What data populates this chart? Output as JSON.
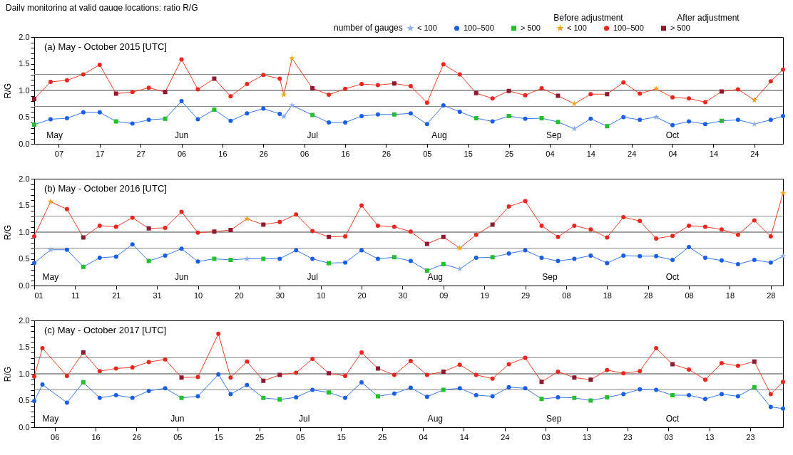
{
  "chart_data": [
    {
      "type": "line",
      "title": "Daily monitoring at valid gauge locations: ratio R/G",
      "subtitle": "(a) May - October 2015 [UTC]",
      "ylabel": "R/G",
      "legend_title": "number of gauges",
      "legend": "top right",
      "annotations": [
        "Before adjustment",
        "After adjustment"
      ],
      "x2lim": [
        "2015-05-01",
        "2015-10-31"
      ],
      "x2ticks": [
        {
          "value": "2015-05-06",
          "label": "May"
        },
        {
          "value": "2015-06-06",
          "label": "Jun"
        },
        {
          "value": "2015-07-08",
          "label": "Jul"
        },
        {
          "value": "2015-08-08",
          "label": "Aug"
        },
        {
          "value": "2015-09-05",
          "label": "Sep"
        },
        {
          "value": "2015-10-04",
          "label": "Oct"
        }
      ],
      "xlim": [
        "2015-05-01",
        "2015-10-31"
      ],
      "xticks": [
        {
          "value": "2015-05-07",
          "label": "07"
        },
        {
          "value": "2015-05-17",
          "label": "17"
        },
        {
          "value": "2015-05-27",
          "label": "27"
        },
        {
          "value": "2015-06-06",
          "label": "06"
        },
        {
          "value": "2015-06-16",
          "label": "16"
        },
        {
          "value": "2015-06-26",
          "label": "26"
        },
        {
          "value": "2015-07-06",
          "label": "06"
        },
        {
          "value": "2015-07-16",
          "label": "16"
        },
        {
          "value": "2015-07-26",
          "label": "26"
        },
        {
          "value": "2015-08-05",
          "label": "05"
        },
        {
          "value": "2015-08-15",
          "label": "15"
        },
        {
          "value": "2015-08-25",
          "label": "25"
        },
        {
          "value": "2015-09-04",
          "label": "04"
        },
        {
          "value": "2015-09-14",
          "label": "14"
        },
        {
          "value": "2015-09-24",
          "label": "24"
        },
        {
          "value": "2015-10-04",
          "label": "04"
        },
        {
          "value": "2015-10-14",
          "label": "14"
        },
        {
          "value": "2015-10-24",
          "label": "24"
        }
      ],
      "ylim": [
        0,
        2
      ],
      "yticks": [
        {
          "value": 0,
          "label": "0.0"
        },
        {
          "value": 0.1,
          "label": null
        },
        {
          "value": 0.2,
          "label": null
        },
        {
          "value": 0.3,
          "label": null
        },
        {
          "value": 0.4,
          "label": null
        },
        {
          "value": 0.5,
          "label": "0.5"
        },
        {
          "value": 0.6,
          "label": null
        },
        {
          "value": 0.7,
          "label": null
        },
        {
          "value": 0.8,
          "label": null
        },
        {
          "value": 0.9,
          "label": null
        },
        {
          "value": 1,
          "label": "1.0"
        },
        {
          "value": 1.1,
          "label": null
        },
        {
          "value": 1.2,
          "label": null
        },
        {
          "value": 1.3,
          "label": null
        },
        {
          "value": 1.4,
          "label": null
        },
        {
          "value": 1.5,
          "label": "1.5"
        },
        {
          "value": 1.6,
          "label": null
        },
        {
          "value": 1.7,
          "label": null
        },
        {
          "value": 1.8,
          "label": null
        },
        {
          "value": 1.9,
          "label": null
        },
        {
          "value": 2,
          "label": "2.0"
        }
      ],
      "ref_lines": [
        {
          "axis": "y",
          "value": 0.7,
          "color": "#8c8c8c"
        },
        {
          "axis": "y",
          "value": 1.0,
          "color": "#404040"
        },
        {
          "axis": "y",
          "value": 1.3,
          "color": "#8c8c8c"
        }
      ],
      "x": [
        "2015-05-01",
        "2015-05-05",
        "2015-05-09",
        "2015-05-13",
        "2015-05-17",
        "2015-05-21",
        "2015-05-25",
        "2015-05-29",
        "2015-06-02",
        "2015-06-06",
        "2015-06-10",
        "2015-06-14",
        "2015-06-18",
        "2015-06-22",
        "2015-06-26",
        "2015-06-30",
        "2015-07-01",
        "2015-07-03",
        "2015-07-08",
        "2015-07-12",
        "2015-07-16",
        "2015-07-20",
        "2015-07-24",
        "2015-07-28",
        "2015-08-01",
        "2015-08-05",
        "2015-08-09",
        "2015-08-13",
        "2015-08-17",
        "2015-08-21",
        "2015-08-25",
        "2015-08-29",
        "2015-09-02",
        "2015-09-06",
        "2015-09-10",
        "2015-09-14",
        "2015-09-18",
        "2015-09-22",
        "2015-09-26",
        "2015-09-30",
        "2015-10-04",
        "2015-10-08",
        "2015-10-12",
        "2015-10-16",
        "2015-10-20",
        "2015-10-24",
        "2015-10-28",
        "2015-10-31"
      ],
      "series": [
        {
          "type": "line",
          "color": "#3a78dd",
          "marker": "none",
          "values": [
            0.36,
            0.46,
            0.48,
            0.59,
            0.59,
            0.42,
            0.38,
            0.45,
            0.47,
            0.8,
            0.46,
            0.64,
            0.43,
            0.57,
            0.66,
            0.56,
            0.51,
            0.72,
            0.54,
            0.4,
            0.4,
            0.52,
            0.55,
            0.55,
            0.57,
            0.37,
            0.72,
            0.6,
            0.48,
            0.42,
            0.52,
            0.47,
            0.48,
            0.41,
            0.28,
            0.47,
            0.33,
            0.5,
            0.45,
            0.5,
            0.35,
            0.42,
            0.37,
            0.43,
            0.45,
            0.37,
            0.45,
            0.52
          ]
        },
        {
          "type": "line",
          "color": "#e8402a",
          "marker": "none",
          "values": [
            0.84,
            1.16,
            1.19,
            1.3,
            1.48,
            0.94,
            0.97,
            1.05,
            0.97,
            1.58,
            1.02,
            1.22,
            0.89,
            1.12,
            1.29,
            1.22,
            0.92,
            1.6,
            1.04,
            0.92,
            1.03,
            1.12,
            1.1,
            1.13,
            1.08,
            0.77,
            1.49,
            1.3,
            0.95,
            0.85,
            0.99,
            0.91,
            1.04,
            0.9,
            0.75,
            0.93,
            0.93,
            1.15,
            0.94,
            1.03,
            0.87,
            0.85,
            0.78,
            0.98,
            1.02,
            0.82,
            1.17,
            1.39
          ]
        },
        {
          "type": "scatter",
          "name": "< 100",
          "color": "#8fb0f0",
          "marker": "star",
          "x": [
            "2015-07-01",
            "2015-07-03",
            "2015-09-10",
            "2015-09-30",
            "2015-10-24"
          ],
          "values": [
            0.51,
            0.72,
            0.28,
            0.5,
            0.37
          ]
        },
        {
          "type": "scatter",
          "name": "100–500",
          "color": "#1a5ee6",
          "marker": "circle",
          "x": [
            "2015-05-05",
            "2015-05-09",
            "2015-05-13",
            "2015-05-17",
            "2015-05-25",
            "2015-05-29",
            "2015-06-06",
            "2015-06-10",
            "2015-06-18",
            "2015-06-22",
            "2015-06-26",
            "2015-06-30",
            "2015-07-12",
            "2015-07-16",
            "2015-07-20",
            "2015-07-24",
            "2015-08-01",
            "2015-08-05",
            "2015-08-09",
            "2015-08-13",
            "2015-08-21",
            "2015-08-29",
            "2015-09-14",
            "2015-09-22",
            "2015-09-26",
            "2015-10-04",
            "2015-10-08",
            "2015-10-12",
            "2015-10-20",
            "2015-10-28",
            "2015-10-31"
          ],
          "values": [
            0.46,
            0.48,
            0.59,
            0.59,
            0.38,
            0.45,
            0.8,
            0.46,
            0.43,
            0.57,
            0.66,
            0.56,
            0.4,
            0.4,
            0.52,
            0.55,
            0.57,
            0.37,
            0.72,
            0.6,
            0.42,
            0.47,
            0.47,
            0.5,
            0.45,
            0.35,
            0.42,
            0.37,
            0.45,
            0.45,
            0.52
          ]
        },
        {
          "type": "scatter",
          "name": "> 500",
          "color": "#21c02c",
          "marker": "square",
          "x": [
            "2015-05-01",
            "2015-05-21",
            "2015-06-02",
            "2015-06-14",
            "2015-07-08",
            "2015-07-28",
            "2015-08-17",
            "2015-08-25",
            "2015-09-02",
            "2015-09-06",
            "2015-09-18",
            "2015-10-16"
          ],
          "values": [
            0.36,
            0.42,
            0.47,
            0.64,
            0.54,
            0.55,
            0.48,
            0.52,
            0.48,
            0.41,
            0.33,
            0.43
          ]
        },
        {
          "type": "scatter",
          "name": "< 100",
          "color": "#f5a41c",
          "marker": "star",
          "x": [
            "2015-07-01",
            "2015-07-03",
            "2015-09-10",
            "2015-09-30",
            "2015-10-24"
          ],
          "values": [
            0.92,
            1.6,
            0.75,
            1.03,
            0.82
          ]
        },
        {
          "type": "scatter",
          "name": "100–500",
          "color": "#e8251e",
          "marker": "circle",
          "x": [
            "2015-05-05",
            "2015-05-09",
            "2015-05-13",
            "2015-05-17",
            "2015-05-25",
            "2015-05-29",
            "2015-06-06",
            "2015-06-10",
            "2015-06-18",
            "2015-06-22",
            "2015-06-26",
            "2015-06-30",
            "2015-07-12",
            "2015-07-16",
            "2015-07-20",
            "2015-07-24",
            "2015-08-01",
            "2015-08-05",
            "2015-08-09",
            "2015-08-13",
            "2015-08-21",
            "2015-08-29",
            "2015-09-02",
            "2015-09-14",
            "2015-09-22",
            "2015-09-26",
            "2015-10-04",
            "2015-10-08",
            "2015-10-12",
            "2015-10-20",
            "2015-10-28",
            "2015-10-31"
          ],
          "values": [
            1.16,
            1.19,
            1.3,
            1.48,
            0.97,
            1.05,
            1.58,
            1.02,
            0.89,
            1.12,
            1.29,
            1.22,
            0.92,
            1.03,
            1.12,
            1.1,
            1.08,
            0.77,
            1.49,
            1.3,
            0.85,
            0.91,
            1.04,
            0.93,
            1.15,
            0.94,
            0.87,
            0.85,
            0.78,
            1.02,
            1.17,
            1.39
          ]
        },
        {
          "type": "scatter",
          "name": "> 500",
          "color": "#8c1a30",
          "marker": "square",
          "x": [
            "2015-05-01",
            "2015-05-21",
            "2015-06-02",
            "2015-06-14",
            "2015-07-08",
            "2015-07-28",
            "2015-08-17",
            "2015-08-25",
            "2015-09-06",
            "2015-09-18",
            "2015-10-16"
          ],
          "values": [
            0.84,
            0.94,
            0.97,
            1.22,
            1.04,
            1.13,
            0.95,
            0.99,
            0.9,
            0.93,
            0.98
          ]
        }
      ]
    },
    {
      "type": "line",
      "title": "(b) May - October 2016 [UTC]",
      "ylabel": "R/G",
      "x2lim": [
        "2016-05-01",
        "2016-10-31"
      ],
      "x2ticks": [
        {
          "value": "2016-05-05",
          "label": "May"
        },
        {
          "value": "2016-06-06",
          "label": "Jun"
        },
        {
          "value": "2016-07-08",
          "label": "Jul"
        },
        {
          "value": "2016-08-07",
          "label": "Aug"
        },
        {
          "value": "2016-09-04",
          "label": "Sep"
        },
        {
          "value": "2016-10-04",
          "label": "Oct"
        }
      ],
      "xlim": [
        "2016-05-01",
        "2016-10-31"
      ],
      "xticks": [
        {
          "value": "2016-05-01",
          "label": "01"
        },
        {
          "value": "2016-05-11",
          "label": "11"
        },
        {
          "value": "2016-05-21",
          "label": "21"
        },
        {
          "value": "2016-05-31",
          "label": "31"
        },
        {
          "value": "2016-06-10",
          "label": "10"
        },
        {
          "value": "2016-06-20",
          "label": "20"
        },
        {
          "value": "2016-06-30",
          "label": "30"
        },
        {
          "value": "2016-07-10",
          "label": "10"
        },
        {
          "value": "2016-07-20",
          "label": "20"
        },
        {
          "value": "2016-07-30",
          "label": "30"
        },
        {
          "value": "2016-08-09",
          "label": "09"
        },
        {
          "value": "2016-08-19",
          "label": "19"
        },
        {
          "value": "2016-08-29",
          "label": "29"
        },
        {
          "value": "2016-09-08",
          "label": "08"
        },
        {
          "value": "2016-09-18",
          "label": "18"
        },
        {
          "value": "2016-09-28",
          "label": "28"
        },
        {
          "value": "2016-10-08",
          "label": "08"
        },
        {
          "value": "2016-10-18",
          "label": "18"
        },
        {
          "value": "2016-10-28",
          "label": "28"
        }
      ],
      "ylim": [
        0,
        2
      ],
      "yticks": [
        {
          "value": 0,
          "label": "0.0"
        },
        {
          "value": 0.1,
          "label": null
        },
        {
          "value": 0.2,
          "label": null
        },
        {
          "value": 0.3,
          "label": null
        },
        {
          "value": 0.4,
          "label": null
        },
        {
          "value": 0.5,
          "label": "0.5"
        },
        {
          "value": 0.6,
          "label": null
        },
        {
          "value": 0.7,
          "label": null
        },
        {
          "value": 0.8,
          "label": null
        },
        {
          "value": 0.9,
          "label": null
        },
        {
          "value": 1,
          "label": "1.0"
        },
        {
          "value": 1.1,
          "label": null
        },
        {
          "value": 1.2,
          "label": null
        },
        {
          "value": 1.3,
          "label": null
        },
        {
          "value": 1.4,
          "label": null
        },
        {
          "value": 1.5,
          "label": "1.5"
        },
        {
          "value": 1.6,
          "label": null
        },
        {
          "value": 1.7,
          "label": null
        },
        {
          "value": 1.8,
          "label": null
        },
        {
          "value": 1.9,
          "label": null
        },
        {
          "value": 2,
          "label": "2.0"
        }
      ],
      "ref_lines": [
        {
          "axis": "y",
          "value": 0.7,
          "color": "#8c8c8c"
        },
        {
          "axis": "y",
          "value": 1.0,
          "color": "#404040"
        },
        {
          "axis": "y",
          "value": 1.3,
          "color": "#8c8c8c"
        }
      ],
      "x": [
        "2016-05-01",
        "2016-05-05",
        "2016-05-09",
        "2016-05-13",
        "2016-05-17",
        "2016-05-21",
        "2016-05-25",
        "2016-05-29",
        "2016-06-02",
        "2016-06-06",
        "2016-06-10",
        "2016-06-14",
        "2016-06-18",
        "2016-06-22",
        "2016-06-26",
        "2016-06-30",
        "2016-07-04",
        "2016-07-08",
        "2016-07-12",
        "2016-07-16",
        "2016-07-20",
        "2016-07-24",
        "2016-07-28",
        "2016-08-01",
        "2016-08-05",
        "2016-08-09",
        "2016-08-13",
        "2016-08-17",
        "2016-08-21",
        "2016-08-25",
        "2016-08-29",
        "2016-09-02",
        "2016-09-06",
        "2016-09-10",
        "2016-09-14",
        "2016-09-18",
        "2016-09-22",
        "2016-09-26",
        "2016-09-30",
        "2016-10-04",
        "2016-10-08",
        "2016-10-12",
        "2016-10-16",
        "2016-10-20",
        "2016-10-24",
        "2016-10-28",
        "2016-10-31"
      ],
      "series": [
        {
          "type": "line",
          "color": "#3a78dd",
          "marker": "none",
          "values": [
            0.42,
            0.67,
            0.67,
            0.35,
            0.52,
            0.54,
            0.77,
            0.46,
            0.56,
            0.69,
            0.45,
            0.5,
            0.48,
            0.5,
            0.5,
            0.5,
            0.66,
            0.5,
            0.42,
            0.43,
            0.66,
            0.5,
            0.53,
            0.46,
            0.28,
            0.4,
            0.31,
            0.52,
            0.53,
            0.6,
            0.66,
            0.52,
            0.46,
            0.5,
            0.56,
            0.42,
            0.56,
            0.55,
            0.55,
            0.48,
            0.72,
            0.52,
            0.47,
            0.4,
            0.48,
            0.43,
            0.55
          ]
        },
        {
          "type": "line",
          "color": "#e8402a",
          "marker": "none",
          "values": [
            0.92,
            1.57,
            1.43,
            0.9,
            1.12,
            1.1,
            1.27,
            1.07,
            1.08,
            1.38,
            0.99,
            1.01,
            1.04,
            1.25,
            1.14,
            1.19,
            1.33,
            1.02,
            0.91,
            0.92,
            1.5,
            1.12,
            1.1,
            1.01,
            0.78,
            0.91,
            0.7,
            0.95,
            1.14,
            1.48,
            1.58,
            1.12,
            0.91,
            1.12,
            1.05,
            0.9,
            1.28,
            1.21,
            0.88,
            0.93,
            1.12,
            1.1,
            1.05,
            0.95,
            1.22,
            0.92,
            1.73
          ]
        },
        {
          "type": "scatter",
          "color": "#8fb0f0",
          "marker": "star",
          "x": [
            "2016-05-05",
            "2016-06-22",
            "2016-08-13",
            "2016-10-31"
          ],
          "values": [
            0.67,
            0.5,
            0.31,
            0.55
          ]
        },
        {
          "type": "scatter",
          "color": "#1a5ee6",
          "marker": "circle",
          "x": [
            "2016-05-01",
            "2016-05-09",
            "2016-05-17",
            "2016-05-21",
            "2016-05-25",
            "2016-06-02",
            "2016-06-06",
            "2016-06-10",
            "2016-06-30",
            "2016-07-04",
            "2016-07-08",
            "2016-07-16",
            "2016-07-20",
            "2016-07-24",
            "2016-08-01",
            "2016-08-17",
            "2016-08-25",
            "2016-08-29",
            "2016-09-02",
            "2016-09-06",
            "2016-09-10",
            "2016-09-14",
            "2016-09-18",
            "2016-09-22",
            "2016-09-26",
            "2016-09-30",
            "2016-10-04",
            "2016-10-08",
            "2016-10-12",
            "2016-10-16",
            "2016-10-20",
            "2016-10-24",
            "2016-10-28"
          ],
          "values": [
            0.42,
            0.67,
            0.52,
            0.54,
            0.77,
            0.56,
            0.69,
            0.45,
            0.5,
            0.66,
            0.5,
            0.43,
            0.66,
            0.5,
            0.46,
            0.52,
            0.6,
            0.66,
            0.52,
            0.46,
            0.5,
            0.56,
            0.42,
            0.56,
            0.55,
            0.55,
            0.48,
            0.72,
            0.52,
            0.47,
            0.4,
            0.48,
            0.43
          ]
        },
        {
          "type": "scatter",
          "color": "#21c02c",
          "marker": "square",
          "x": [
            "2016-05-13",
            "2016-05-29",
            "2016-06-14",
            "2016-06-18",
            "2016-06-26",
            "2016-07-12",
            "2016-07-28",
            "2016-08-05",
            "2016-08-09",
            "2016-08-21"
          ],
          "values": [
            0.35,
            0.46,
            0.5,
            0.48,
            0.5,
            0.42,
            0.53,
            0.28,
            0.4,
            0.53
          ]
        },
        {
          "type": "scatter",
          "color": "#f5a41c",
          "marker": "star",
          "x": [
            "2016-05-05",
            "2016-06-22",
            "2016-08-13",
            "2016-10-31"
          ],
          "values": [
            1.57,
            1.25,
            0.7,
            1.73
          ]
        },
        {
          "type": "scatter",
          "color": "#e8251e",
          "marker": "circle",
          "x": [
            "2016-05-01",
            "2016-05-09",
            "2016-05-17",
            "2016-05-21",
            "2016-05-25",
            "2016-06-02",
            "2016-06-06",
            "2016-06-10",
            "2016-06-30",
            "2016-07-04",
            "2016-07-08",
            "2016-07-16",
            "2016-07-20",
            "2016-07-24",
            "2016-07-28",
            "2016-08-01",
            "2016-08-17",
            "2016-08-25",
            "2016-08-29",
            "2016-09-02",
            "2016-09-06",
            "2016-09-10",
            "2016-09-14",
            "2016-09-18",
            "2016-09-22",
            "2016-09-26",
            "2016-09-30",
            "2016-10-04",
            "2016-10-08",
            "2016-10-12",
            "2016-10-16",
            "2016-10-20",
            "2016-10-24",
            "2016-10-28"
          ],
          "values": [
            0.92,
            1.43,
            1.12,
            1.1,
            1.27,
            1.08,
            1.38,
            0.99,
            1.19,
            1.33,
            1.02,
            0.92,
            1.5,
            1.12,
            1.1,
            1.01,
            0.95,
            1.48,
            1.58,
            1.12,
            0.91,
            1.12,
            1.05,
            0.9,
            1.28,
            1.21,
            0.88,
            0.93,
            1.12,
            1.1,
            1.05,
            0.95,
            1.22,
            0.92
          ]
        },
        {
          "type": "scatter",
          "color": "#8c1a30",
          "marker": "square",
          "x": [
            "2016-05-13",
            "2016-05-29",
            "2016-06-14",
            "2016-06-18",
            "2016-06-26",
            "2016-07-12",
            "2016-08-05",
            "2016-08-09",
            "2016-08-21"
          ],
          "values": [
            0.9,
            1.07,
            1.01,
            1.04,
            1.14,
            0.91,
            0.78,
            0.91,
            1.14
          ]
        }
      ]
    },
    {
      "type": "line",
      "title": "(c) May - October 2017 [UTC]",
      "ylabel": "R/G",
      "x2lim": [
        "2017-05-01",
        "2017-10-31"
      ],
      "x2ticks": [
        {
          "value": "2017-05-05",
          "label": "May"
        },
        {
          "value": "2017-06-05",
          "label": "Jun"
        },
        {
          "value": "2017-07-06",
          "label": "Jul"
        },
        {
          "value": "2017-08-07",
          "label": "Aug"
        },
        {
          "value": "2017-09-05",
          "label": "Sep"
        },
        {
          "value": "2017-10-04",
          "label": "Oct"
        }
      ],
      "xlim": [
        "2017-05-01",
        "2017-10-31"
      ],
      "xticks": [
        {
          "value": "2017-05-06",
          "label": "06"
        },
        {
          "value": "2017-05-16",
          "label": "16"
        },
        {
          "value": "2017-05-26",
          "label": "26"
        },
        {
          "value": "2017-06-05",
          "label": "05"
        },
        {
          "value": "2017-06-15",
          "label": "15"
        },
        {
          "value": "2017-06-25",
          "label": "25"
        },
        {
          "value": "2017-07-05",
          "label": "05"
        },
        {
          "value": "2017-07-15",
          "label": "15"
        },
        {
          "value": "2017-07-25",
          "label": "25"
        },
        {
          "value": "2017-08-04",
          "label": "04"
        },
        {
          "value": "2017-08-14",
          "label": "14"
        },
        {
          "value": "2017-08-24",
          "label": "24"
        },
        {
          "value": "2017-09-03",
          "label": "03"
        },
        {
          "value": "2017-09-13",
          "label": "13"
        },
        {
          "value": "2017-09-23",
          "label": "23"
        },
        {
          "value": "2017-10-03",
          "label": "03"
        },
        {
          "value": "2017-10-13",
          "label": "13"
        },
        {
          "value": "2017-10-23",
          "label": "23"
        }
      ],
      "ylim": [
        0,
        2
      ],
      "yticks": [
        {
          "value": 0,
          "label": "0.0"
        },
        {
          "value": 0.1,
          "label": null
        },
        {
          "value": 0.2,
          "label": null
        },
        {
          "value": 0.3,
          "label": null
        },
        {
          "value": 0.4,
          "label": null
        },
        {
          "value": 0.5,
          "label": "0.5"
        },
        {
          "value": 0.6,
          "label": null
        },
        {
          "value": 0.7,
          "label": null
        },
        {
          "value": 0.8,
          "label": null
        },
        {
          "value": 0.9,
          "label": null
        },
        {
          "value": 1,
          "label": "1.0"
        },
        {
          "value": 1.1,
          "label": null
        },
        {
          "value": 1.2,
          "label": null
        },
        {
          "value": 1.3,
          "label": null
        },
        {
          "value": 1.4,
          "label": null
        },
        {
          "value": 1.5,
          "label": "1.5"
        },
        {
          "value": 1.6,
          "label": null
        },
        {
          "value": 1.7,
          "label": null
        },
        {
          "value": 1.8,
          "label": null
        },
        {
          "value": 1.9,
          "label": null
        },
        {
          "value": 2,
          "label": "2.0"
        }
      ],
      "ref_lines": [
        {
          "axis": "y",
          "value": 0.7,
          "color": "#8c8c8c"
        },
        {
          "axis": "y",
          "value": 1.0,
          "color": "#404040"
        },
        {
          "axis": "y",
          "value": 1.3,
          "color": "#8c8c8c"
        }
      ],
      "x": [
        "2017-05-01",
        "2017-05-03",
        "2017-05-09",
        "2017-05-13",
        "2017-05-17",
        "2017-05-21",
        "2017-05-25",
        "2017-05-29",
        "2017-06-02",
        "2017-06-06",
        "2017-06-10",
        "2017-06-15",
        "2017-06-18",
        "2017-06-22",
        "2017-06-26",
        "2017-06-30",
        "2017-07-04",
        "2017-07-08",
        "2017-07-12",
        "2017-07-16",
        "2017-07-20",
        "2017-07-24",
        "2017-07-28",
        "2017-08-01",
        "2017-08-05",
        "2017-08-09",
        "2017-08-13",
        "2017-08-17",
        "2017-08-21",
        "2017-08-25",
        "2017-08-29",
        "2017-09-02",
        "2017-09-06",
        "2017-09-10",
        "2017-09-14",
        "2017-09-18",
        "2017-09-22",
        "2017-09-26",
        "2017-09-30",
        "2017-10-04",
        "2017-10-08",
        "2017-10-12",
        "2017-10-16",
        "2017-10-20",
        "2017-10-24",
        "2017-10-28",
        "2017-10-31"
      ],
      "series": [
        {
          "type": "line",
          "color": "#3a78dd",
          "marker": "none",
          "values": [
            0.49,
            0.8,
            0.46,
            0.84,
            0.55,
            0.6,
            0.55,
            0.68,
            0.73,
            0.55,
            0.58,
            0.99,
            0.62,
            0.79,
            0.55,
            0.52,
            0.56,
            0.7,
            0.65,
            0.55,
            0.84,
            0.58,
            0.63,
            0.74,
            0.57,
            0.7,
            0.73,
            0.6,
            0.58,
            0.75,
            0.73,
            0.53,
            0.56,
            0.55,
            0.5,
            0.56,
            0.62,
            0.71,
            0.7,
            0.6,
            0.6,
            0.53,
            0.62,
            0.58,
            0.75,
            0.38,
            0.35
          ]
        },
        {
          "type": "line",
          "color": "#e8402a",
          "marker": "none",
          "values": [
            0.95,
            1.48,
            0.96,
            1.4,
            1.05,
            1.1,
            1.12,
            1.22,
            1.27,
            0.93,
            0.94,
            1.75,
            0.93,
            1.23,
            0.87,
            0.98,
            1.02,
            1.28,
            1.01,
            0.96,
            1.4,
            1.1,
            0.98,
            1.24,
            0.98,
            1.04,
            1.17,
            0.98,
            0.91,
            1.18,
            1.3,
            0.85,
            1.04,
            0.93,
            0.89,
            1.07,
            1.01,
            1.05,
            1.48,
            1.18,
            1.08,
            0.89,
            1.2,
            1.15,
            1.23,
            0.62,
            0.85
          ]
        },
        {
          "type": "scatter",
          "color": "#1a5ee6",
          "marker": "circle",
          "x": [
            "2017-05-01",
            "2017-05-03",
            "2017-05-09",
            "2017-05-17",
            "2017-05-21",
            "2017-05-25",
            "2017-05-29",
            "2017-06-02",
            "2017-06-10",
            "2017-06-15",
            "2017-06-18",
            "2017-06-22",
            "2017-07-04",
            "2017-07-08",
            "2017-07-16",
            "2017-07-20",
            "2017-07-28",
            "2017-08-01",
            "2017-08-05",
            "2017-08-13",
            "2017-08-17",
            "2017-08-21",
            "2017-08-25",
            "2017-08-29",
            "2017-09-06",
            "2017-09-22",
            "2017-09-26",
            "2017-09-30",
            "2017-10-08",
            "2017-10-12",
            "2017-10-16",
            "2017-10-20",
            "2017-10-28",
            "2017-10-31"
          ],
          "values": [
            0.49,
            0.8,
            0.46,
            0.55,
            0.6,
            0.55,
            0.68,
            0.73,
            0.58,
            0.99,
            0.62,
            0.79,
            0.56,
            0.7,
            0.55,
            0.84,
            0.63,
            0.74,
            0.57,
            0.73,
            0.6,
            0.58,
            0.75,
            0.73,
            0.56,
            0.62,
            0.71,
            0.7,
            0.6,
            0.53,
            0.62,
            0.58,
            0.38,
            0.35
          ]
        },
        {
          "type": "scatter",
          "color": "#21c02c",
          "marker": "square",
          "x": [
            "2017-05-13",
            "2017-06-06",
            "2017-06-26",
            "2017-06-30",
            "2017-07-12",
            "2017-07-24",
            "2017-08-09",
            "2017-09-02",
            "2017-09-10",
            "2017-09-14",
            "2017-09-18",
            "2017-10-04",
            "2017-10-24"
          ],
          "values": [
            0.84,
            0.55,
            0.55,
            0.52,
            0.65,
            0.58,
            0.7,
            0.53,
            0.55,
            0.5,
            0.56,
            0.6,
            0.75
          ]
        },
        {
          "type": "scatter",
          "color": "#e8251e",
          "marker": "circle",
          "x": [
            "2017-05-01",
            "2017-05-03",
            "2017-05-09",
            "2017-05-17",
            "2017-05-21",
            "2017-05-25",
            "2017-05-29",
            "2017-06-02",
            "2017-06-10",
            "2017-06-15",
            "2017-06-18",
            "2017-06-22",
            "2017-07-04",
            "2017-07-08",
            "2017-07-16",
            "2017-07-20",
            "2017-07-28",
            "2017-08-01",
            "2017-08-05",
            "2017-08-13",
            "2017-08-17",
            "2017-08-21",
            "2017-08-25",
            "2017-08-29",
            "2017-09-06",
            "2017-09-18",
            "2017-09-22",
            "2017-09-26",
            "2017-09-30",
            "2017-10-08",
            "2017-10-12",
            "2017-10-16",
            "2017-10-20",
            "2017-10-28",
            "2017-10-31"
          ],
          "values": [
            0.95,
            1.48,
            0.96,
            1.05,
            1.1,
            1.12,
            1.22,
            1.27,
            0.94,
            1.75,
            0.93,
            1.23,
            1.02,
            1.28,
            0.96,
            1.4,
            0.98,
            1.24,
            0.98,
            1.17,
            0.98,
            0.91,
            1.18,
            1.3,
            1.04,
            1.07,
            1.01,
            1.05,
            1.48,
            1.08,
            0.89,
            1.2,
            1.15,
            0.62,
            0.85
          ]
        },
        {
          "type": "scatter",
          "color": "#8c1a30",
          "marker": "square",
          "x": [
            "2017-05-13",
            "2017-06-06",
            "2017-06-26",
            "2017-06-30",
            "2017-07-12",
            "2017-07-24",
            "2017-08-09",
            "2017-09-02",
            "2017-09-10",
            "2017-09-14",
            "2017-10-04",
            "2017-10-24"
          ],
          "values": [
            1.4,
            0.93,
            0.87,
            0.98,
            1.01,
            1.1,
            1.04,
            0.85,
            0.93,
            0.89,
            1.18,
            1.23
          ]
        }
      ]
    }
  ]
}
